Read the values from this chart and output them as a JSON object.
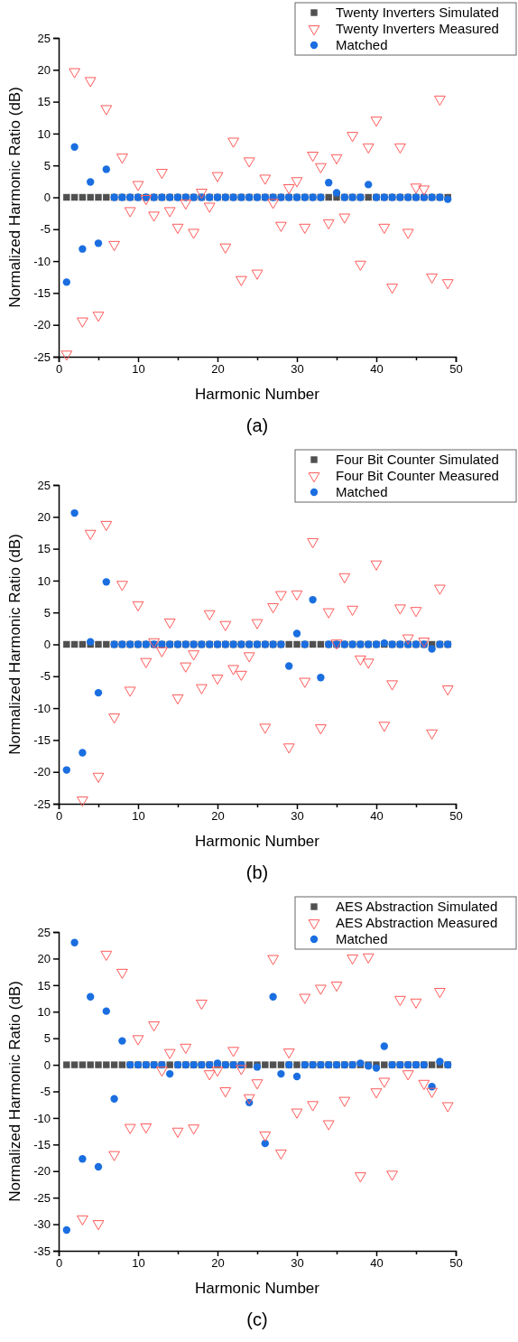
{
  "chart_data": [
    {
      "type": "scatter",
      "xlabel": "Harmonic Number",
      "ylabel": "Normalized Harmonic Ratio (dB)",
      "annotations": [
        "(a)"
      ],
      "legend": "top right",
      "xlim": [
        0,
        50
      ],
      "ylim": [
        -25,
        25
      ],
      "xticks": [
        0,
        {
          "value": 5,
          "label": null
        },
        10,
        {
          "value": 15,
          "label": null
        },
        20,
        {
          "value": 25,
          "label": null
        },
        30,
        {
          "value": 35,
          "label": null
        },
        40,
        {
          "value": 45,
          "label": null
        },
        50
      ],
      "yticks": [
        -25,
        -20,
        -15,
        -10,
        -5,
        0,
        5,
        10,
        15,
        20,
        25
      ],
      "x": [
        1,
        2,
        3,
        4,
        5,
        6,
        7,
        8,
        9,
        10,
        11,
        12,
        13,
        14,
        15,
        16,
        17,
        18,
        19,
        20,
        21,
        22,
        23,
        24,
        25,
        26,
        27,
        28,
        29,
        30,
        31,
        32,
        33,
        34,
        35,
        36,
        37,
        38,
        39,
        40,
        41,
        42,
        43,
        44,
        45,
        46,
        47,
        48,
        49
      ],
      "series": [
        {
          "name": "Twenty Inverters Simulated",
          "color": "#505050",
          "marker": "square",
          "values": [
            0,
            0,
            0,
            0,
            0,
            0,
            0,
            0,
            0,
            0,
            0,
            0,
            0,
            0,
            0,
            0,
            0,
            0,
            0,
            0,
            0,
            0,
            0,
            0,
            0,
            0,
            0,
            0,
            0,
            0,
            0,
            0,
            0,
            0,
            0,
            0,
            0,
            0,
            0,
            0,
            0,
            0,
            0,
            0,
            0,
            0,
            0,
            0,
            0
          ]
        },
        {
          "name": "Twenty Inverters Measured",
          "color": "#ff5a5a",
          "marker": "triangle",
          "values": [
            -24.6,
            19.7,
            -19.4,
            18.3,
            -18.5,
            13.9,
            -7.4,
            6.3,
            -2.1,
            2.0,
            -0.2,
            -2.8,
            3.9,
            -2.1,
            -4.7,
            -0.9,
            -5.5,
            0.8,
            -1.4,
            3.4,
            -7.8,
            8.8,
            -12.9,
            5.7,
            -11.9,
            3.0,
            -0.8,
            -4.4,
            1.5,
            2.6,
            -4.7,
            6.6,
            4.8,
            -4.0,
            6.2,
            -3.1,
            9.7,
            -10.5,
            7.9,
            12.1,
            -4.7,
            -14.1,
            7.9,
            -5.5,
            1.6,
            1.3,
            -12.5,
            15.4,
            -13.4
          ]
        },
        {
          "name": "Matched",
          "color": "#1a6ee0",
          "marker": "circle",
          "values": [
            -13.3,
            7.9,
            -8.1,
            2.4,
            -7.2,
            4.4,
            0,
            0,
            0,
            0,
            0,
            0,
            0,
            0,
            0,
            0,
            0,
            0,
            0,
            0,
            0,
            0,
            0,
            0,
            0,
            0,
            0,
            0,
            0,
            0,
            0,
            0,
            0,
            2.3,
            0.7,
            0,
            0,
            0,
            2.0,
            0,
            0,
            0,
            0,
            0,
            0,
            0,
            0,
            0,
            -0.3
          ]
        }
      ]
    },
    {
      "type": "scatter",
      "xlabel": "Harmonic Number",
      "ylabel": "Normalized Harmonic Ratio (dB)",
      "annotations": [
        "(b)"
      ],
      "legend": "top right",
      "xlim": [
        0,
        50
      ],
      "ylim": [
        -25,
        25
      ],
      "xticks": [
        0,
        {
          "value": 5,
          "label": null
        },
        10,
        {
          "value": 15,
          "label": null
        },
        20,
        {
          "value": 25,
          "label": null
        },
        30,
        {
          "value": 35,
          "label": null
        },
        40,
        {
          "value": 45,
          "label": null
        },
        50
      ],
      "yticks": [
        -25,
        -20,
        -15,
        -10,
        -5,
        0,
        5,
        10,
        15,
        20,
        25
      ],
      "x": [
        1,
        2,
        3,
        4,
        5,
        6,
        7,
        8,
        9,
        10,
        11,
        12,
        13,
        14,
        15,
        16,
        17,
        18,
        19,
        20,
        21,
        22,
        23,
        24,
        25,
        26,
        27,
        28,
        29,
        30,
        31,
        32,
        33,
        34,
        35,
        36,
        37,
        38,
        39,
        40,
        41,
        42,
        43,
        44,
        45,
        46,
        47,
        48,
        49
      ],
      "series": [
        {
          "name": "Four Bit Counter Simulated",
          "color": "#505050",
          "marker": "square",
          "values": [
            0,
            0,
            0,
            0,
            0,
            0,
            0,
            0,
            0,
            0,
            0,
            0,
            0,
            0,
            0,
            0,
            0,
            0,
            0,
            0,
            0,
            0,
            0,
            0,
            0,
            0,
            0,
            0,
            0,
            0,
            0,
            0,
            0,
            0,
            0,
            0,
            0,
            0,
            0,
            0,
            0,
            0,
            0,
            0,
            0,
            0,
            0,
            0,
            0
          ]
        },
        {
          "name": "Four Bit Counter Measured",
          "color": "#ff5a5a",
          "marker": "triangle",
          "values": [
            null,
            null,
            -24.4,
            17.4,
            -20.7,
            18.8,
            -11.4,
            9.4,
            -7.2,
            6.2,
            -2.7,
            0.4,
            -1.0,
            3.5,
            -8.4,
            -3.4,
            -1.5,
            -6.8,
            4.8,
            -5.3,
            3.1,
            -3.8,
            -4.7,
            -1.8,
            3.4,
            -13.0,
            5.9,
            7.8,
            -16.1,
            7.9,
            -5.8,
            16.1,
            -13.1,
            5.1,
            0.2,
            10.6,
            5.5,
            -2.3,
            -2.8,
            12.6,
            -12.7,
            -6.2,
            5.7,
            1.0,
            5.3,
            0.5,
            -13.9,
            8.8,
            -7.0
          ]
        },
        {
          "name": "Matched",
          "color": "#1a6ee0",
          "marker": "circle",
          "values": [
            -19.7,
            20.6,
            -17.0,
            0.4,
            -7.6,
            9.8,
            0,
            0,
            0,
            0,
            0,
            0,
            0,
            0,
            0,
            0,
            0,
            0,
            0,
            0,
            0,
            0,
            0,
            0,
            0,
            0,
            0,
            0,
            -3.4,
            1.7,
            0,
            7.0,
            -5.2,
            0,
            0,
            0,
            0,
            0,
            0,
            0,
            0.2,
            0,
            0,
            0,
            0,
            0,
            -0.7,
            0,
            0
          ]
        }
      ]
    },
    {
      "type": "scatter",
      "xlabel": "Harmonic Number",
      "ylabel": "Normalized Harmonic Ratio (dB)",
      "annotations": [
        "(c)"
      ],
      "legend": "top right",
      "xlim": [
        0,
        50
      ],
      "ylim": [
        -35,
        25
      ],
      "xticks": [
        0,
        {
          "value": 5,
          "label": null
        },
        10,
        {
          "value": 15,
          "label": null
        },
        20,
        {
          "value": 25,
          "label": null
        },
        30,
        {
          "value": 35,
          "label": null
        },
        40,
        {
          "value": 45,
          "label": null
        },
        50
      ],
      "yticks": [
        -35,
        -30,
        -25,
        -20,
        -15,
        -10,
        -5,
        0,
        5,
        10,
        15,
        20,
        25
      ],
      "x": [
        1,
        2,
        3,
        4,
        5,
        6,
        7,
        8,
        9,
        10,
        11,
        12,
        13,
        14,
        15,
        16,
        17,
        18,
        19,
        20,
        21,
        22,
        23,
        24,
        25,
        26,
        27,
        28,
        29,
        30,
        31,
        32,
        33,
        34,
        35,
        36,
        37,
        38,
        39,
        40,
        41,
        42,
        43,
        44,
        45,
        46,
        47,
        48,
        49
      ],
      "series": [
        {
          "name": "AES Abstraction Simulated",
          "color": "#505050",
          "marker": "square",
          "values": [
            0,
            0,
            0,
            0,
            0,
            0,
            0,
            0,
            0,
            0,
            0,
            0,
            0,
            0,
            0,
            0,
            0,
            0,
            0,
            0,
            0,
            0,
            0,
            0,
            0,
            0,
            0,
            0,
            0,
            0,
            0,
            0,
            0,
            0,
            0,
            0,
            0,
            0,
            0,
            0,
            0,
            0,
            0,
            0,
            0,
            0,
            0,
            0,
            0
          ]
        },
        {
          "name": "AES Abstraction Measured",
          "color": "#ff5a5a",
          "marker": "triangle",
          "values": [
            null,
            null,
            -29.0,
            null,
            -29.9,
            20.8,
            -16.9,
            17.4,
            -11.8,
            4.9,
            -11.7,
            7.5,
            -1.0,
            2.3,
            -12.5,
            3.3,
            -11.9,
            11.6,
            -1.7,
            -1.0,
            -4.9,
            2.7,
            -0.7,
            -6.2,
            -3.4,
            -13.2,
            20.0,
            -16.6,
            2.4,
            -8.9,
            12.7,
            -7.5,
            14.4,
            -11.1,
            15.0,
            -6.7,
            20.1,
            -20.9,
            20.3,
            -5.1,
            -3.1,
            -20.6,
            12.3,
            -1.7,
            11.8,
            -3.5,
            -5.0,
            13.8,
            -7.7
          ]
        },
        {
          "name": "Matched",
          "color": "#1a6ee0",
          "marker": "circle",
          "values": [
            -31.1,
            23.0,
            -17.7,
            12.8,
            -19.2,
            10.1,
            -6.4,
            4.5,
            0,
            0,
            0,
            0,
            0,
            -1.7,
            0,
            0,
            0,
            0,
            0,
            0.3,
            0,
            0,
            0,
            -7.1,
            -0.4,
            -14.8,
            12.8,
            -1.7,
            0,
            -2.2,
            0,
            0,
            0,
            0,
            0,
            0,
            0,
            0.3,
            -0.2,
            -0.6,
            3.5,
            0,
            0,
            0,
            0,
            0,
            -4.1,
            0.6,
            0
          ]
        }
      ]
    }
  ]
}
